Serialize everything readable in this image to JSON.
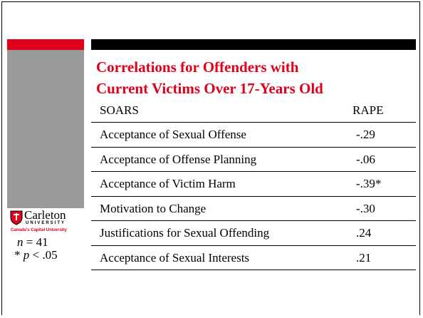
{
  "slide": {
    "title": [
      "Correlations for Offenders with",
      "Current Victims Over 17-Years Old"
    ],
    "table": {
      "header": [
        "SOARS",
        "RAPE"
      ],
      "rows": [
        [
          "Acceptance of Sexual Offense",
          "-.29"
        ],
        [
          "Acceptance of Offense Planning",
          "-.06"
        ],
        [
          "Acceptance of Victim Harm",
          "-.39*"
        ],
        [
          "Motivation to Change",
          "-.30"
        ],
        [
          "Justifications for Sexual Offending",
          ".24"
        ],
        [
          "Acceptance of Sexual Interests",
          ".21"
        ]
      ]
    },
    "logo": {
      "name": "Carleton",
      "sub": "UNIVERSITY",
      "tagline": "Canada's Capital University"
    },
    "footnote": {
      "n_symbol": "n",
      "n_text": "= 41",
      "p_star": "*",
      "p_symbol": "p",
      "p_text": "< .05"
    }
  }
}
